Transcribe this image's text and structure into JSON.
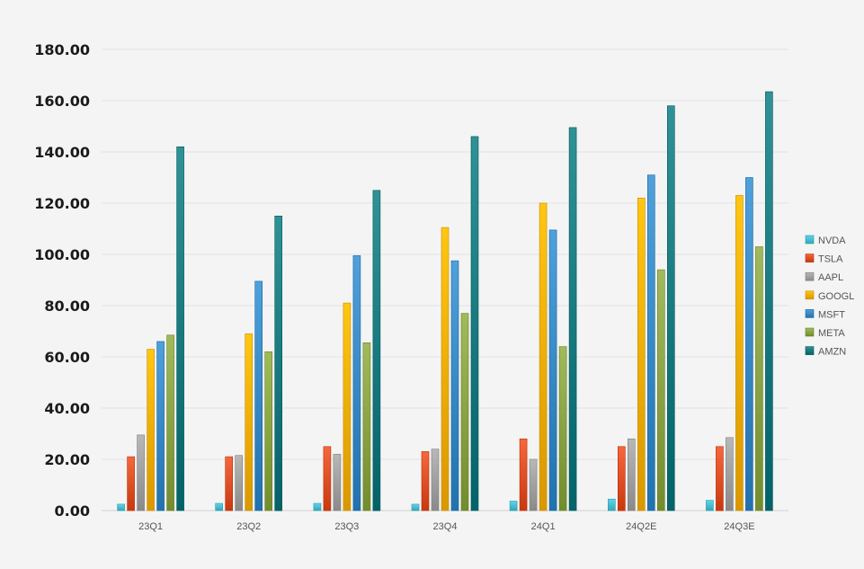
{
  "chart_data": {
    "type": "bar",
    "title": "",
    "xlabel": "",
    "ylabel": "",
    "categories": [
      "23Q1",
      "23Q2",
      "23Q3",
      "23Q4",
      "24Q1",
      "24Q2E",
      "24Q3E"
    ],
    "ylim": [
      0,
      180
    ],
    "yticks": [
      "0.00",
      "20.00",
      "40.00",
      "60.00",
      "80.00",
      "100.00",
      "120.00",
      "140.00",
      "160.00",
      "180.00"
    ],
    "grid": true,
    "legend_position": "right",
    "series": [
      {
        "name": "NVDA",
        "color": "#4fc3d6",
        "values": [
          2.5,
          2.8,
          2.8,
          2.5,
          3.7,
          4.5,
          4.0
        ]
      },
      {
        "name": "TSLA",
        "color": "#e4552b",
        "values": [
          21,
          21,
          25,
          23,
          28,
          25,
          25
        ]
      },
      {
        "name": "AAPL",
        "color": "#a6a6a6",
        "values": [
          29.5,
          21.5,
          22,
          24,
          20,
          28,
          28.5
        ]
      },
      {
        "name": "GOOGL",
        "color": "#f5b400",
        "values": [
          63,
          69,
          81,
          110.5,
          120,
          122,
          123
        ]
      },
      {
        "name": "MSFT",
        "color": "#3d8ec9",
        "values": [
          66,
          89.5,
          99.5,
          97.5,
          109.5,
          131,
          130
        ]
      },
      {
        "name": "META",
        "color": "#8fa84a",
        "values": [
          68.5,
          62,
          65.5,
          77,
          64,
          94,
          103
        ]
      },
      {
        "name": "AMZN",
        "color": "#1e7f84",
        "values": [
          142,
          115,
          125,
          146,
          149.5,
          158,
          163.5
        ]
      }
    ]
  }
}
